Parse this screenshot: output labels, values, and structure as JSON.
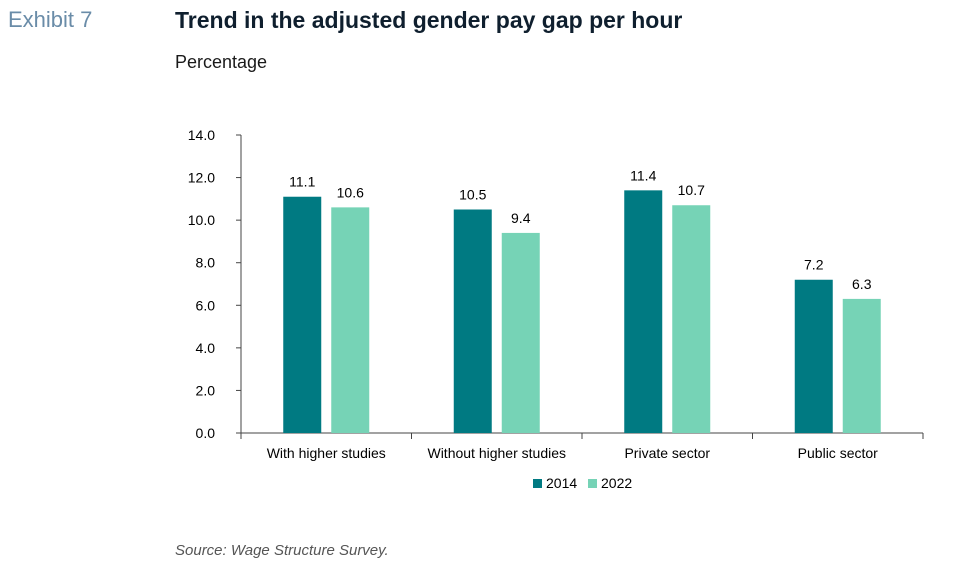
{
  "header": {
    "exhibit": "Exhibit 7",
    "title": "Trend in the adjusted gender pay gap per hour",
    "subtitle": "Percentage"
  },
  "footer": {
    "source": "Source: Wage Structure Survey."
  },
  "colors": {
    "series_2014": "#007a82",
    "series_2022": "#76d3b6",
    "axis": "#444444",
    "text": "#000000"
  },
  "chart_data": {
    "type": "bar",
    "categories": [
      "With higher studies",
      "Without higher studies",
      "Private sector",
      "Public sector"
    ],
    "series": [
      {
        "name": "2014",
        "values": [
          11.1,
          10.5,
          11.4,
          7.2
        ]
      },
      {
        "name": "2022",
        "values": [
          10.6,
          9.4,
          10.7,
          6.3
        ]
      }
    ],
    "ylim": [
      0,
      14
    ],
    "yticks": [
      "0.0",
      "2.0",
      "4.0",
      "6.0",
      "8.0",
      "10.0",
      "12.0",
      "14.0"
    ],
    "data_labels": [
      [
        "11.1",
        "10.5",
        "11.4",
        "7.2"
      ],
      [
        "10.6",
        "9.4",
        "10.7",
        "6.3"
      ]
    ],
    "legend_position": "bottom-center",
    "grid": false
  }
}
